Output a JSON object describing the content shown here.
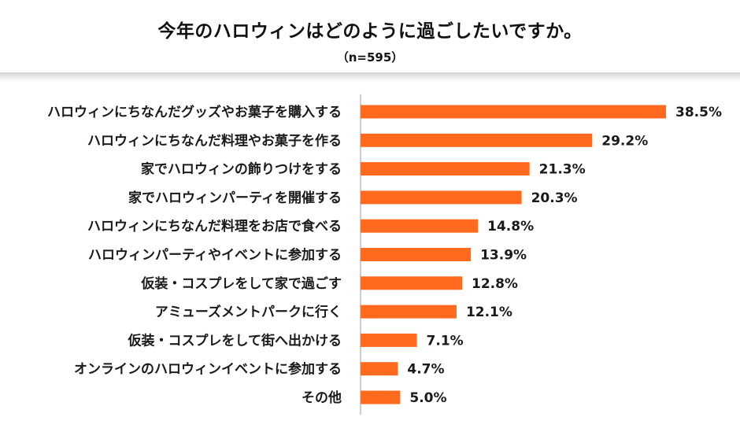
{
  "chart_data": {
    "type": "bar",
    "orientation": "horizontal",
    "title": "今年のハロウィンはどのように過ごしたいですか。",
    "subtitle": "（n=595）",
    "categories": [
      "ハロウィンにちなんだグッズやお菓子を購入する",
      "ハロウィンにちなんだ料理やお菓子を作る",
      "家でハロウィンの飾りつけをする",
      "家でハロウィンパーティを開催する",
      "ハロウィンにちなんだ料理をお店で食べる",
      "ハロウィンパーティやイベントに参加する",
      "仮装・コスプレをして家で過ごす",
      "アミューズメントパークに行く",
      "仮装・コスプレをして街へ出かける",
      "オンラインのハロウィンイベントに参加する",
      "その他"
    ],
    "values": [
      38.5,
      29.2,
      21.3,
      20.3,
      14.8,
      13.9,
      12.8,
      12.1,
      7.1,
      4.7,
      5.0
    ],
    "value_labels": [
      "38.5%",
      "29.2%",
      "21.3%",
      "20.3%",
      "14.8%",
      "13.9%",
      "12.8%",
      "12.1%",
      "7.1%",
      "4.7%",
      "5.0%"
    ],
    "unit": "%",
    "xlim": [
      0,
      45
    ],
    "xlabel": "",
    "ylabel": "",
    "grid": false,
    "legend": "none",
    "bar_color": "#ff6a1f",
    "axis_color": "#bdbdbd"
  }
}
